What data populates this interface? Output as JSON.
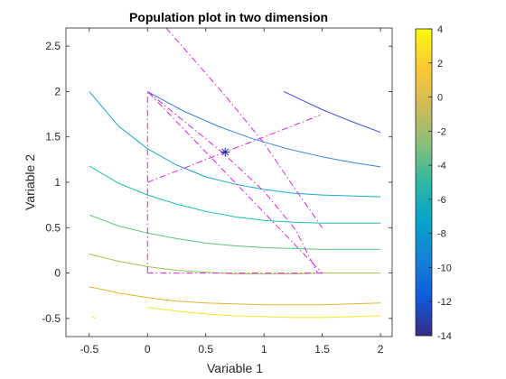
{
  "chart_data": {
    "type": "contour",
    "title": "Population plot in two dimension",
    "xlabel": "Variable  1",
    "ylabel": "Variable  2",
    "xlim": [
      -0.7,
      2.1
    ],
    "ylim": [
      -0.7,
      2.7
    ],
    "xticks": [
      -0.5,
      0,
      0.5,
      1,
      1.5,
      2
    ],
    "xtick_labels": [
      "-0.5",
      "0",
      "0.5",
      "1",
      "1.5",
      "2"
    ],
    "yticks": [
      -0.5,
      0,
      0.5,
      1,
      1.5,
      2,
      2.5
    ],
    "ytick_labels": [
      "-0.5",
      "0",
      "0.5",
      "1",
      "1.5",
      "2",
      "2.5"
    ],
    "grid": false,
    "colorbar": {
      "range": [
        -14,
        4
      ],
      "ticks": [
        -14,
        -12,
        -10,
        -8,
        -6,
        -4,
        -2,
        0,
        2,
        4
      ],
      "tick_labels": [
        "-14",
        "-12",
        "-10",
        "-8",
        "-6",
        "-4",
        "-2",
        "0",
        "2",
        "4"
      ],
      "colormap": "parula",
      "position": "right"
    },
    "contours": [
      {
        "level": -12.2,
        "color": "#3c4fd8",
        "x": [
          1.17,
          1.5,
          1.75,
          2.0
        ],
        "y": [
          2.0,
          1.8,
          1.67,
          1.55
        ]
      },
      {
        "level": -10.0,
        "color": "#2f83e8",
        "x": [
          0.0,
          0.3,
          0.6,
          0.9,
          1.2,
          1.5,
          1.75,
          2.0
        ],
        "y": [
          2.0,
          1.79,
          1.62,
          1.48,
          1.37,
          1.28,
          1.22,
          1.17
        ]
      },
      {
        "level": -7.0,
        "color": "#18a8d6",
        "x": [
          -0.5,
          -0.25,
          0.0,
          0.25,
          0.5,
          0.75,
          1.0,
          1.25,
          1.5,
          1.75,
          2.0
        ],
        "y": [
          2.0,
          1.62,
          1.37,
          1.19,
          1.06,
          0.98,
          0.92,
          0.88,
          0.86,
          0.85,
          0.84
        ]
      },
      {
        "level": -5.0,
        "color": "#1ebfb3",
        "x": [
          -0.5,
          -0.25,
          0.0,
          0.25,
          0.5,
          0.75,
          1.0,
          1.25,
          1.5,
          1.75,
          2.0
        ],
        "y": [
          1.18,
          0.99,
          0.86,
          0.76,
          0.68,
          0.62,
          0.58,
          0.56,
          0.55,
          0.55,
          0.55
        ]
      },
      {
        "level": -3.0,
        "color": "#56c77a",
        "x": [
          -0.5,
          -0.25,
          0.0,
          0.25,
          0.5,
          0.75,
          1.0,
          1.25,
          1.5,
          1.75,
          2.0
        ],
        "y": [
          0.64,
          0.52,
          0.44,
          0.38,
          0.33,
          0.3,
          0.28,
          0.27,
          0.26,
          0.26,
          0.26
        ]
      },
      {
        "level": -1.0,
        "color": "#a5c04b",
        "x": [
          -0.5,
          -0.25,
          0.0,
          0.25,
          0.5,
          0.75,
          1.0,
          1.25,
          1.5,
          1.75,
          2.0
        ],
        "y": [
          0.21,
          0.13,
          0.07,
          0.03,
          0.01,
          -0.01,
          -0.01,
          -0.01,
          -0.0,
          0.0,
          0.0
        ]
      },
      {
        "level": 1.0,
        "color": "#e0b52e",
        "x": [
          -0.5,
          -0.25,
          0.0,
          0.25,
          0.5,
          0.75,
          1.0,
          1.25,
          1.5,
          1.75,
          2.0
        ],
        "y": [
          -0.15,
          -0.22,
          -0.27,
          -0.31,
          -0.33,
          -0.34,
          -0.35,
          -0.35,
          -0.35,
          -0.34,
          -0.33
        ]
      },
      {
        "level": 3.0,
        "color": "#f5e61f",
        "x": [
          0.0,
          0.25,
          0.5,
          0.75,
          1.0,
          1.25,
          1.5,
          1.75,
          2.0
        ],
        "y": [
          -0.38,
          -0.42,
          -0.45,
          -0.47,
          -0.48,
          -0.49,
          -0.49,
          -0.48,
          -0.47
        ]
      },
      {
        "level": 3.5,
        "color": "#f7ec2a",
        "x": [
          -0.48,
          -0.44
        ],
        "y": [
          -0.48,
          -0.5
        ]
      }
    ],
    "constraint_lines": [
      {
        "color": "#e022e0",
        "style": "dashdot",
        "x": [
          0.0,
          0.0,
          1.5,
          0.0
        ],
        "y": [
          0.0,
          2.0,
          0.0,
          0.0
        ]
      },
      {
        "color": "#e022e0",
        "style": "dashdot",
        "x": [
          0.16,
          0.65,
          1.0,
          1.27,
          1.5
        ],
        "y": [
          2.7,
          1.98,
          1.43,
          0.92,
          0.5
        ]
      },
      {
        "color": "#e022e0",
        "style": "dashdot",
        "x": [
          0.0,
          1.48
        ],
        "y": [
          1.0,
          1.74
        ]
      },
      {
        "color": "#e022e0",
        "style": "dashdot",
        "x": [
          0.0,
          0.65,
          1.0,
          1.27,
          1.46
        ],
        "y": [
          2.0,
          1.32,
          0.9,
          0.48,
          0.0
        ]
      }
    ],
    "markers": [
      {
        "x": 0.667,
        "y": 1.333,
        "symbol": "asterisk",
        "color": "#1a2bb0"
      }
    ]
  }
}
